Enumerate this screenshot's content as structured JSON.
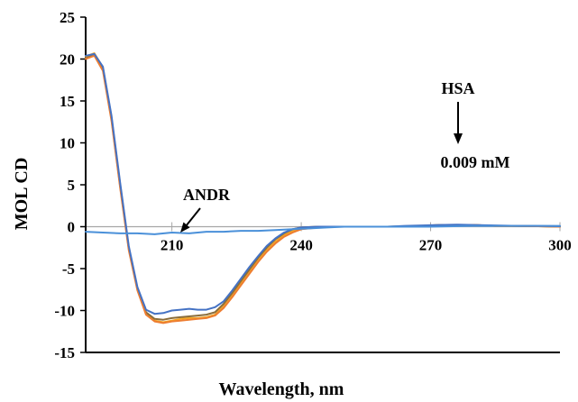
{
  "chart_data": {
    "type": "line",
    "xlabel": "Wavelength, nm",
    "ylabel": "MOL CD",
    "xlim": [
      190,
      300
    ],
    "ylim": [
      -15,
      25
    ],
    "xticks": [
      210,
      240,
      270,
      300
    ],
    "yticks": [
      25,
      20,
      15,
      10,
      5,
      0,
      -5,
      -10,
      -15
    ],
    "grid": false,
    "annotations": [
      {
        "text": "HSA"
      },
      {
        "text": "0.009 mM"
      },
      {
        "text": "ANDR"
      }
    ],
    "series": [
      {
        "color": "#f5a623",
        "x": [
          190,
          192,
          194,
          196,
          198,
          200,
          202,
          204,
          206,
          208,
          210,
          212,
          214,
          216,
          218,
          220,
          222,
          224,
          226,
          228,
          230,
          232,
          234,
          236,
          238,
          240,
          244,
          248,
          252,
          256,
          260,
          264,
          268,
          272,
          276,
          280,
          285,
          290,
          295,
          300
        ],
        "y": [
          20.3,
          20.7,
          19.0,
          13.0,
          5.0,
          -2.5,
          -7.5,
          -10.4,
          -11.2,
          -11.4,
          -11.2,
          -11.0,
          -10.9,
          -10.9,
          -10.8,
          -10.5,
          -9.5,
          -8.2,
          -6.8,
          -5.4,
          -4.0,
          -2.8,
          -1.8,
          -1.0,
          -0.5,
          -0.2,
          0.0,
          0.0,
          0.0,
          0.0,
          0.0,
          0.0,
          0.1,
          0.2,
          0.2,
          0.2,
          0.1,
          0.1,
          0.05,
          0.0
        ]
      },
      {
        "color": "#8a6d3b",
        "x": [
          190,
          192,
          194,
          196,
          198,
          200,
          202,
          204,
          206,
          208,
          210,
          212,
          214,
          216,
          218,
          220,
          222,
          224,
          226,
          228,
          230,
          232,
          234,
          236,
          238,
          240,
          244,
          248,
          252,
          256,
          260,
          264,
          268,
          272,
          276,
          280,
          285,
          290,
          295,
          300
        ],
        "y": [
          20.1,
          20.5,
          18.8,
          12.8,
          4.8,
          -2.6,
          -7.4,
          -10.2,
          -11.0,
          -11.1,
          -10.9,
          -10.8,
          -10.7,
          -10.6,
          -10.5,
          -10.2,
          -9.2,
          -7.9,
          -6.5,
          -5.1,
          -3.7,
          -2.5,
          -1.5,
          -0.8,
          -0.3,
          -0.1,
          0.0,
          0.0,
          0.0,
          0.0,
          0.0,
          0.05,
          0.1,
          0.2,
          0.2,
          0.2,
          0.1,
          0.1,
          0.05,
          0.0
        ]
      },
      {
        "color": "#ed7d31",
        "x": [
          190,
          192,
          194,
          196,
          198,
          200,
          202,
          204,
          206,
          208,
          210,
          212,
          214,
          216,
          218,
          220,
          222,
          224,
          226,
          228,
          230,
          232,
          234,
          236,
          238,
          240,
          244,
          248,
          252,
          256,
          260,
          264,
          268,
          272,
          276,
          280,
          285,
          290,
          295,
          300
        ],
        "y": [
          20.0,
          20.4,
          18.6,
          12.6,
          4.6,
          -2.8,
          -7.6,
          -10.5,
          -11.3,
          -11.5,
          -11.3,
          -11.2,
          -11.1,
          -11.0,
          -10.9,
          -10.6,
          -9.7,
          -8.4,
          -7.0,
          -5.6,
          -4.2,
          -3.0,
          -2.0,
          -1.2,
          -0.7,
          -0.3,
          -0.1,
          0.0,
          0.0,
          0.0,
          0.0,
          0.0,
          0.1,
          0.15,
          0.2,
          0.2,
          0.1,
          0.1,
          0.05,
          0.0
        ]
      },
      {
        "color": "#4472c4",
        "x": [
          190,
          192,
          194,
          196,
          198,
          200,
          202,
          204,
          206,
          208,
          210,
          212,
          214,
          216,
          218,
          220,
          222,
          224,
          226,
          228,
          230,
          232,
          234,
          236,
          238,
          240,
          244,
          248,
          252,
          256,
          260,
          264,
          268,
          272,
          276,
          280,
          285,
          290,
          295,
          300
        ],
        "y": [
          20.4,
          20.6,
          19.1,
          13.2,
          5.2,
          -2.3,
          -7.2,
          -9.9,
          -10.4,
          -10.3,
          -10.0,
          -9.9,
          -9.8,
          -9.9,
          -9.9,
          -9.6,
          -8.9,
          -7.6,
          -6.2,
          -4.8,
          -3.5,
          -2.3,
          -1.4,
          -0.7,
          -0.3,
          -0.1,
          0.0,
          0.0,
          0.0,
          0.0,
          0.0,
          0.1,
          0.15,
          0.2,
          0.25,
          0.2,
          0.15,
          0.1,
          0.1,
          0.05
        ]
      },
      {
        "color": "#4a90d9",
        "x": [
          190,
          194,
          198,
          202,
          206,
          210,
          214,
          218,
          222,
          226,
          230,
          234,
          238,
          242,
          246,
          250,
          260,
          270,
          280,
          290,
          300
        ],
        "y": [
          -0.6,
          -0.7,
          -0.8,
          -0.8,
          -0.9,
          -0.7,
          -0.8,
          -0.6,
          -0.6,
          -0.5,
          -0.5,
          -0.4,
          -0.3,
          -0.2,
          -0.1,
          0.0,
          0.0,
          0.0,
          0.1,
          0.1,
          0.1
        ]
      }
    ]
  }
}
